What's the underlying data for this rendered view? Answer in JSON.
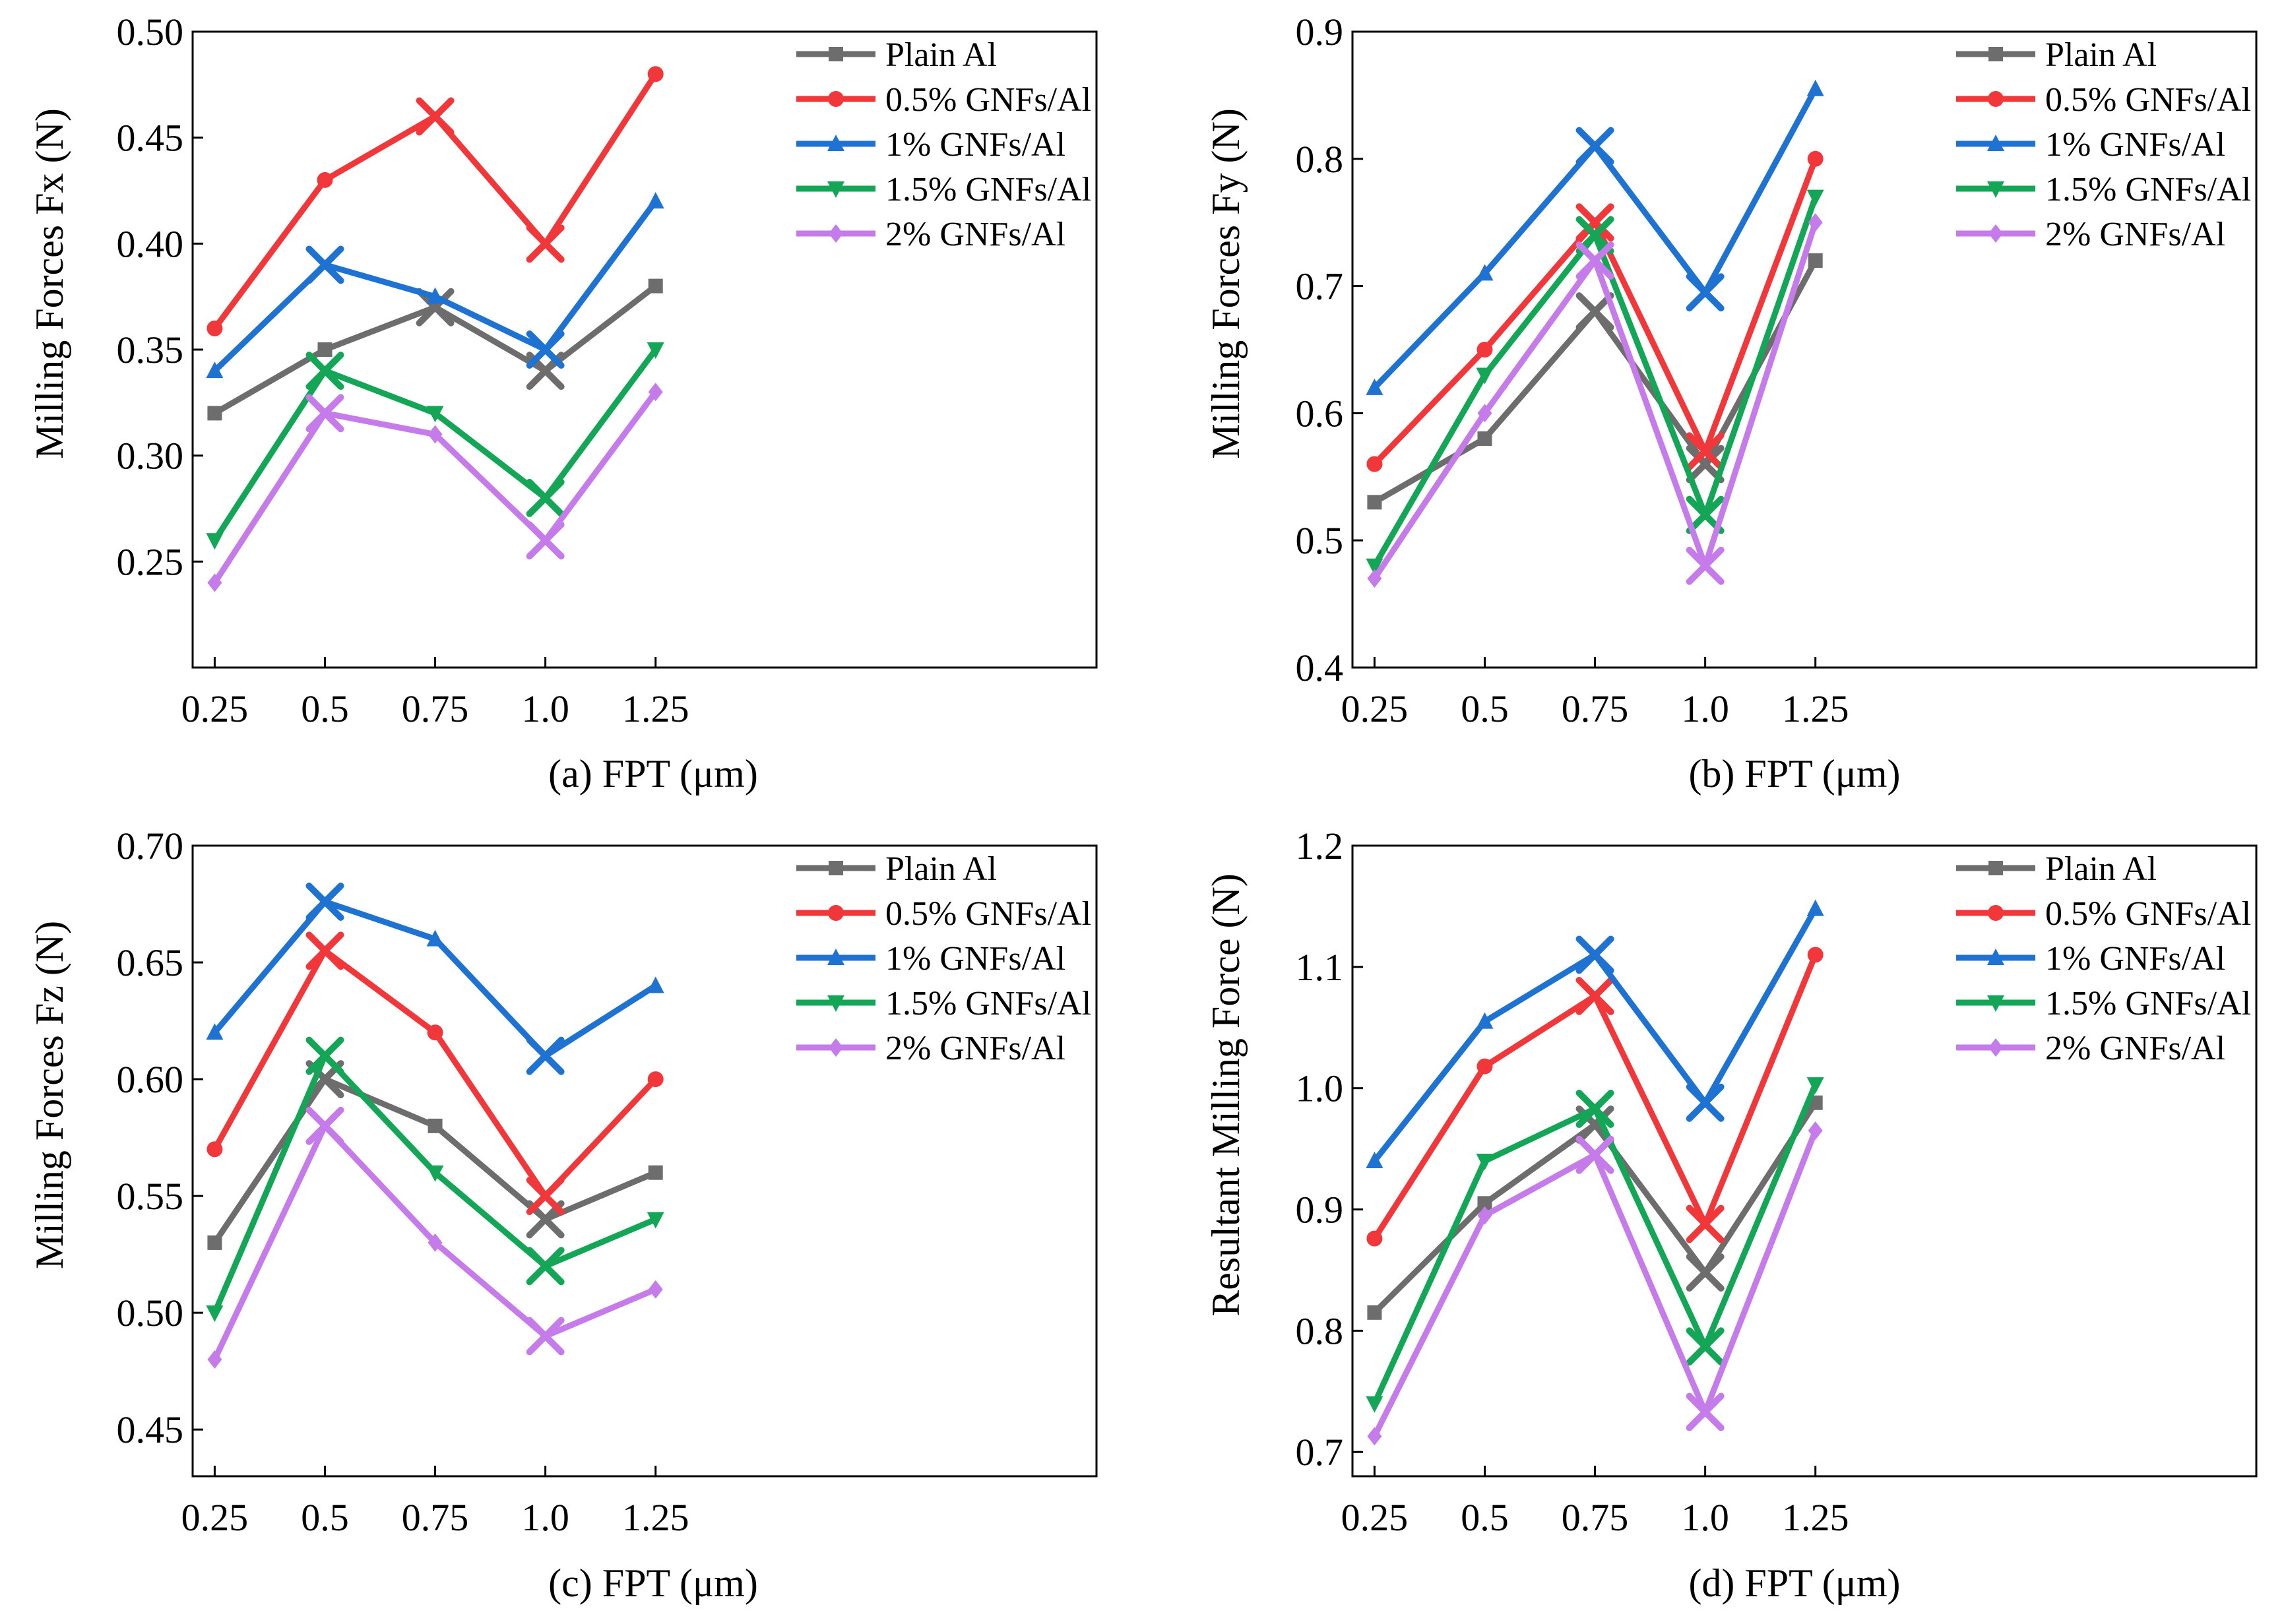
{
  "chart_data": [
    {
      "id": "a",
      "type": "line",
      "caption": "(a) FPT (μm)",
      "ylabel": "Milling Forces Fx (N)",
      "ylim": [
        0.2,
        0.5
      ],
      "yticks": [
        0.25,
        0.3,
        0.35,
        0.4,
        0.45,
        0.5
      ],
      "ytick_labels": [
        "0.25",
        "0.30",
        "0.35",
        "0.40",
        "0.45",
        "0.50"
      ],
      "xlim": [
        0.2,
        2.25
      ],
      "x": [
        0.25,
        0.5,
        0.75,
        1.0,
        1.25
      ],
      "xtick_labels": [
        "0.25",
        "0.5",
        "0.75",
        "1.0",
        "1.25"
      ],
      "series": [
        {
          "name": "Plain Al",
          "color": "#6d6d6d",
          "marker": "square",
          "values": [
            0.32,
            0.35,
            0.37,
            0.34,
            0.38
          ],
          "cross_at": [
            0.75,
            1.0
          ]
        },
        {
          "name": "0.5% GNFs/Al",
          "color": "#f2373a",
          "marker": "circle",
          "values": [
            0.36,
            0.43,
            0.46,
            0.4,
            0.48
          ],
          "cross_at": [
            0.75,
            1.0
          ]
        },
        {
          "name": "1% GNFs/Al",
          "color": "#1e73d2",
          "marker": "triangle-up",
          "values": [
            0.34,
            0.39,
            0.375,
            0.35,
            0.42
          ],
          "cross_at": [
            0.5,
            1.0
          ]
        },
        {
          "name": "1.5% GNFs/Al",
          "color": "#13a656",
          "marker": "triangle-down",
          "values": [
            0.26,
            0.34,
            0.32,
            0.28,
            0.35
          ],
          "cross_at": [
            0.5,
            1.0
          ]
        },
        {
          "name": "2% GNFs/Al",
          "color": "#c57bea",
          "marker": "diamond",
          "values": [
            0.24,
            0.32,
            0.31,
            0.26,
            0.33
          ],
          "cross_at": [
            0.5,
            1.0
          ]
        }
      ]
    },
    {
      "id": "b",
      "type": "line",
      "caption": "(b) FPT (μm)",
      "ylabel": "Milling Forces Fy (N)",
      "ylim": [
        0.4,
        0.9
      ],
      "yticks": [
        0.4,
        0.5,
        0.6,
        0.7,
        0.8,
        0.9
      ],
      "ytick_labels": [
        "0.4",
        "0.5",
        "0.6",
        "0.7",
        "0.8",
        "0.9"
      ],
      "xlim": [
        0.2,
        2.25
      ],
      "x": [
        0.25,
        0.5,
        0.75,
        1.0,
        1.25
      ],
      "xtick_labels": [
        "0.25",
        "0.5",
        "0.75",
        "1.0",
        "1.25"
      ],
      "series": [
        {
          "name": "Plain Al",
          "color": "#6d6d6d",
          "marker": "square",
          "values": [
            0.53,
            0.58,
            0.68,
            0.56,
            0.72
          ],
          "cross_at": [
            0.75,
            1.0
          ]
        },
        {
          "name": "0.5% GNFs/Al",
          "color": "#f2373a",
          "marker": "circle",
          "values": [
            0.56,
            0.65,
            0.75,
            0.57,
            0.8
          ],
          "cross_at": [
            0.75,
            1.0
          ]
        },
        {
          "name": "1% GNFs/Al",
          "color": "#1e73d2",
          "marker": "triangle-up",
          "values": [
            0.62,
            0.71,
            0.81,
            0.695,
            0.855
          ],
          "cross_at": [
            0.75,
            1.0
          ]
        },
        {
          "name": "1.5% GNFs/Al",
          "color": "#13a656",
          "marker": "triangle-down",
          "values": [
            0.48,
            0.63,
            0.74,
            0.52,
            0.77
          ],
          "cross_at": [
            0.75,
            1.0
          ]
        },
        {
          "name": "2% GNFs/Al",
          "color": "#c57bea",
          "marker": "diamond",
          "values": [
            0.47,
            0.6,
            0.72,
            0.48,
            0.75
          ],
          "cross_at": [
            0.75,
            1.0
          ]
        }
      ]
    },
    {
      "id": "c",
      "type": "line",
      "caption": "(c) FPT (μm)",
      "ylabel": "Milling Forces Fz (N)",
      "ylim": [
        0.43,
        0.7
      ],
      "yticks": [
        0.45,
        0.5,
        0.55,
        0.6,
        0.65,
        0.7
      ],
      "ytick_labels": [
        "0.45",
        "0.50",
        "0.55",
        "0.60",
        "0.65",
        "0.70"
      ],
      "xlim": [
        0.2,
        2.25
      ],
      "x": [
        0.25,
        0.5,
        0.75,
        1.0,
        1.25
      ],
      "xtick_labels": [
        "0.25",
        "0.5",
        "0.75",
        "1.0",
        "1.25"
      ],
      "series": [
        {
          "name": "Plain Al",
          "color": "#6d6d6d",
          "marker": "square",
          "values": [
            0.53,
            0.6,
            0.58,
            0.54,
            0.56
          ],
          "cross_at": [
            0.5,
            1.0
          ]
        },
        {
          "name": "0.5% GNFs/Al",
          "color": "#f2373a",
          "marker": "circle",
          "values": [
            0.57,
            0.655,
            0.62,
            0.55,
            0.6
          ],
          "cross_at": [
            0.5,
            1.0
          ]
        },
        {
          "name": "1% GNFs/Al",
          "color": "#1e73d2",
          "marker": "triangle-up",
          "values": [
            0.62,
            0.676,
            0.66,
            0.61,
            0.64
          ],
          "cross_at": [
            0.5,
            1.0
          ]
        },
        {
          "name": "1.5% GNFs/Al",
          "color": "#13a656",
          "marker": "triangle-down",
          "values": [
            0.5,
            0.61,
            0.56,
            0.52,
            0.54
          ],
          "cross_at": [
            0.5,
            1.0
          ]
        },
        {
          "name": "2% GNFs/Al",
          "color": "#c57bea",
          "marker": "diamond",
          "values": [
            0.48,
            0.58,
            0.53,
            0.49,
            0.51
          ],
          "cross_at": [
            0.5,
            1.0
          ]
        }
      ]
    },
    {
      "id": "d",
      "type": "line",
      "caption": "(d) FPT (μm)",
      "ylabel": "Resultant Milling Force (N)",
      "ylim": [
        0.68,
        1.2
      ],
      "yticks": [
        0.7,
        0.8,
        0.9,
        1.0,
        1.1,
        1.2
      ],
      "ytick_labels": [
        "0.7",
        "0.8",
        "0.9",
        "1.0",
        "1.1",
        "1.2"
      ],
      "xlim": [
        0.2,
        2.25
      ],
      "x": [
        0.25,
        0.5,
        0.75,
        1.0,
        1.25
      ],
      "xtick_labels": [
        "0.25",
        "0.5",
        "0.75",
        "1.0",
        "1.25"
      ],
      "series": [
        {
          "name": "Plain Al",
          "color": "#6d6d6d",
          "marker": "square",
          "values": [
            0.815,
            0.905,
            0.97,
            0.848,
            0.988
          ],
          "cross_at": [
            0.75,
            1.0
          ]
        },
        {
          "name": "0.5% GNFs/Al",
          "color": "#f2373a",
          "marker": "circle",
          "values": [
            0.876,
            1.018,
            1.076,
            0.888,
            1.11
          ],
          "cross_at": [
            0.75,
            1.0
          ]
        },
        {
          "name": "1% GNFs/Al",
          "color": "#1e73d2",
          "marker": "triangle-up",
          "values": [
            0.94,
            1.055,
            1.11,
            0.988,
            1.148
          ],
          "cross_at": [
            0.75,
            1.0
          ]
        },
        {
          "name": "1.5% GNFs/Al",
          "color": "#13a656",
          "marker": "triangle-down",
          "values": [
            0.74,
            0.94,
            0.983,
            0.787,
            1.003
          ],
          "cross_at": [
            0.75,
            1.0
          ]
        },
        {
          "name": "2% GNFs/Al",
          "color": "#c57bea",
          "marker": "diamond",
          "values": [
            0.713,
            0.895,
            0.945,
            0.733,
            0.965
          ],
          "cross_at": [
            0.75,
            1.0
          ]
        }
      ]
    }
  ]
}
